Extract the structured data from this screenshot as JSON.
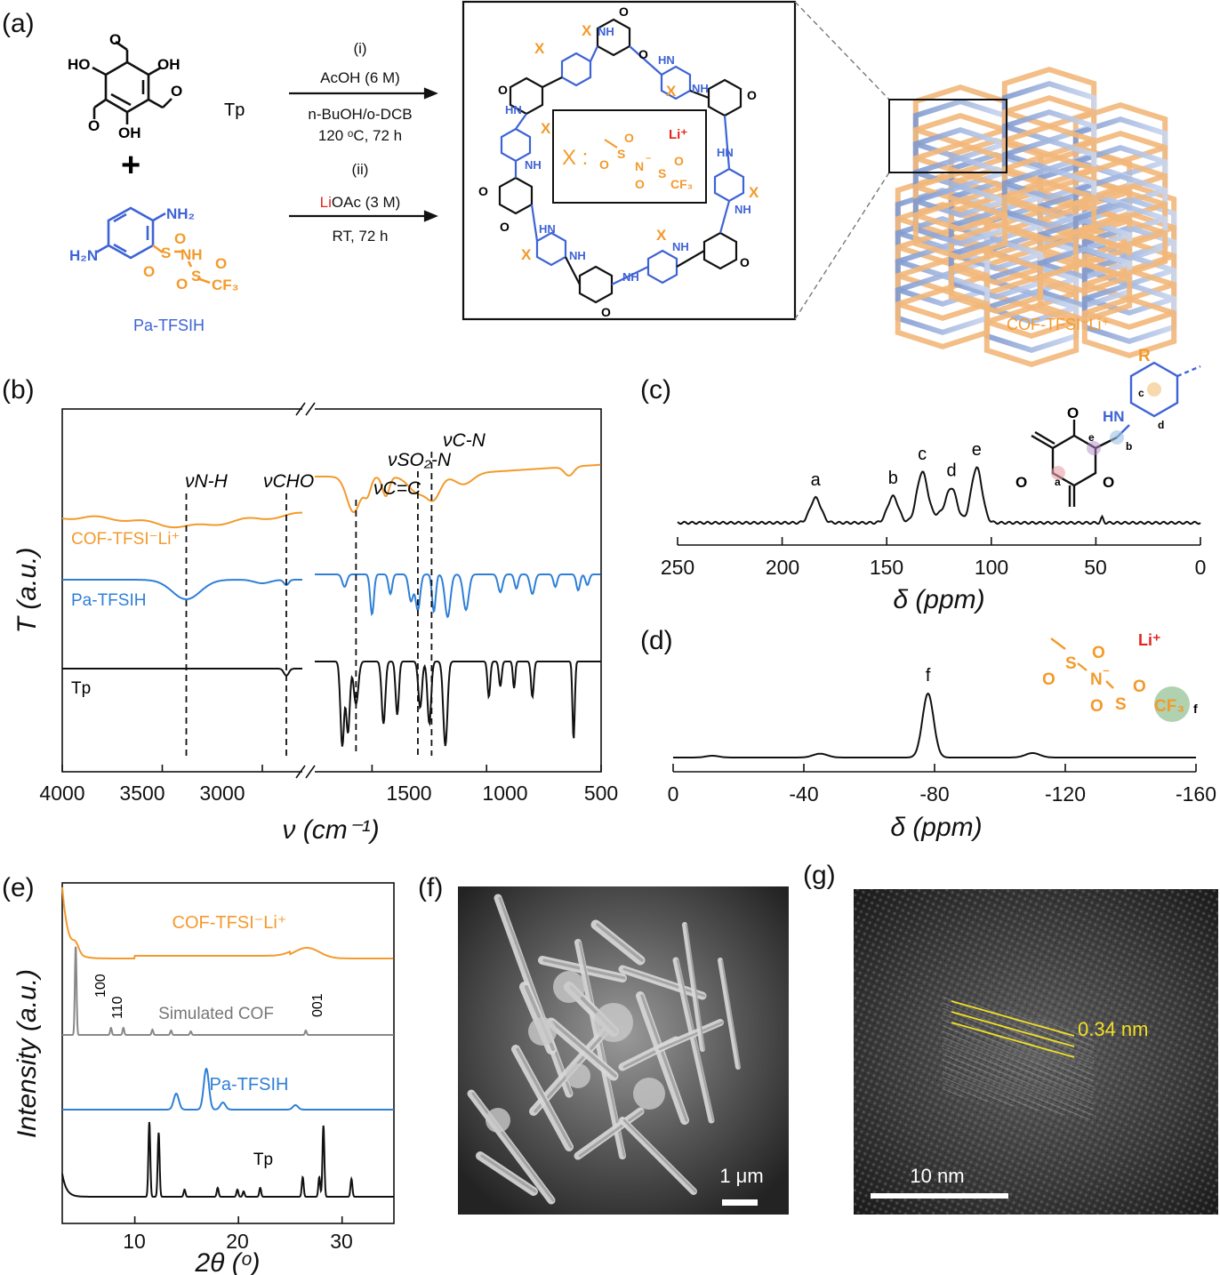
{
  "panels": {
    "a": {
      "label": "(a)",
      "reactant1": {
        "name": "Tp",
        "groups": [
          "HO",
          "OH",
          "OH",
          "O",
          "O",
          "O"
        ]
      },
      "reactant2": {
        "name": "Pa-TFSIH",
        "groups": [
          "NH₂",
          "H₂N",
          "S",
          "O",
          "O",
          "NH",
          "S",
          "O",
          "O",
          "CF₃"
        ]
      },
      "plus": "+",
      "conditions": {
        "step1": [
          "(i)",
          "AcOH (6 M)",
          "n-BuOH/o-DCB",
          "120 ᵒC, 72 h"
        ],
        "step2_label": "(ii)",
        "step2_li": "Li",
        "step2_rest": "OAc (3 M)",
        "step2_time": "RT, 72 h"
      },
      "network": {
        "x_label": "X",
        "legend_prefix": "X :",
        "legend_li": "Li⁺",
        "legend_atoms": [
          "O",
          "S",
          "O",
          "N",
          "⁻",
          "O",
          "S",
          "O",
          "CF₃"
        ],
        "ring_atoms": [
          "O",
          "HN",
          "NH"
        ]
      },
      "product": "COF-TFSI⁻Li⁺"
    },
    "b": {
      "label": "(b)",
      "ylabel": "T (a.u.)",
      "xlabel": "ν (cm⁻¹)",
      "xticks": [
        "4000",
        "3500",
        "3000",
        "1500",
        "1000",
        "500"
      ],
      "annotations": [
        "νN-H",
        "νCHO",
        "νC=C",
        "νSO₂-N",
        "νC-N"
      ],
      "chart_data": {
        "type": "line",
        "x_unit": "cm-1",
        "x_break": [
          2800,
          1750
        ],
        "marker_lines": [
          3380,
          2880,
          1570,
          1300,
          1240
        ],
        "series": [
          {
            "name": "COF-TFSI⁻Li⁺",
            "color": "#f39a2c"
          },
          {
            "name": "Pa-TFSIH",
            "color": "#2f7fd6"
          },
          {
            "name": "Tp",
            "color": "#111111"
          }
        ]
      }
    },
    "c": {
      "label": "(c)",
      "xlabel": "δ (ppm)",
      "xticks": [
        "250",
        "200",
        "150",
        "100",
        "50",
        "0"
      ],
      "peak_labels": [
        "a",
        "b",
        "c",
        "d",
        "e"
      ],
      "inset_atoms": [
        "R",
        "HN",
        "O",
        "O",
        "O",
        "a",
        "b",
        "c",
        "d",
        "e"
      ],
      "chart_data": {
        "type": "line",
        "xlim": [
          250,
          0
        ],
        "peaks": [
          {
            "label": "a",
            "ppm": 184,
            "height": 0.45
          },
          {
            "label": "b",
            "ppm": 147,
            "height": 0.48
          },
          {
            "label": "c",
            "ppm": 133,
            "height": 0.92
          },
          {
            "label": "d",
            "ppm": 119,
            "height": 0.62
          },
          {
            "label": "e",
            "ppm": 107,
            "height": 1.0
          }
        ]
      }
    },
    "d": {
      "label": "(d)",
      "xlabel": "δ (ppm)",
      "xticks": [
        "0",
        "-40",
        "-80",
        "-120",
        "-160"
      ],
      "peak_labels": [
        "f"
      ],
      "inset_atoms": [
        "O",
        "S",
        "O",
        "N",
        "⁻",
        "O",
        "S",
        "O",
        "CF₃",
        "f",
        "Li⁺"
      ],
      "chart_data": {
        "type": "line",
        "xlim": [
          0,
          -160
        ],
        "peaks": [
          {
            "label": "",
            "ppm": -45,
            "height": 0.06
          },
          {
            "label": "f",
            "ppm": -78,
            "height": 1.0
          },
          {
            "label": "",
            "ppm": -110,
            "height": 0.07
          }
        ]
      }
    },
    "e": {
      "label": "(e)",
      "ylabel": "Intensity (a.u.)",
      "xlabel": "2θ (ᵒ)",
      "xticks": [
        "10",
        "20",
        "30"
      ],
      "curve_labels": [
        "COF-TFSI⁻Li⁺",
        "Simulated COF",
        "Pa-TFSIH",
        "Tp"
      ],
      "hkl": [
        "100",
        "110",
        "001"
      ],
      "chart_data": {
        "type": "line",
        "xlim": [
          3,
          35
        ],
        "series": [
          {
            "name": "COF-TFSI⁻Li⁺",
            "color": "#f39a2c",
            "peaks": [
              4.3,
              26.6
            ]
          },
          {
            "name": "Simulated COF",
            "color": "#888888",
            "peaks": [
              4.3,
              7.7,
              8.9,
              11.7,
              13.5,
              15.4,
              26.5
            ]
          },
          {
            "name": "Pa-TFSIH",
            "color": "#2f7fd6",
            "peaks": [
              14.0,
              16.9,
              18.5,
              25.5
            ]
          },
          {
            "name": "Tp",
            "color": "#111111",
            "peaks": [
              11.4,
              12.3,
              14.8,
              18.0,
              19.9,
              20.5,
              22.1,
              26.2,
              27.8,
              28.2,
              30.9
            ]
          }
        ]
      }
    },
    "f": {
      "label": "(f)",
      "scale_bar": "1 μm"
    },
    "g": {
      "label": "(g)",
      "scale_bar": "10 nm",
      "fringe_spacing": "0.34 nm"
    }
  }
}
